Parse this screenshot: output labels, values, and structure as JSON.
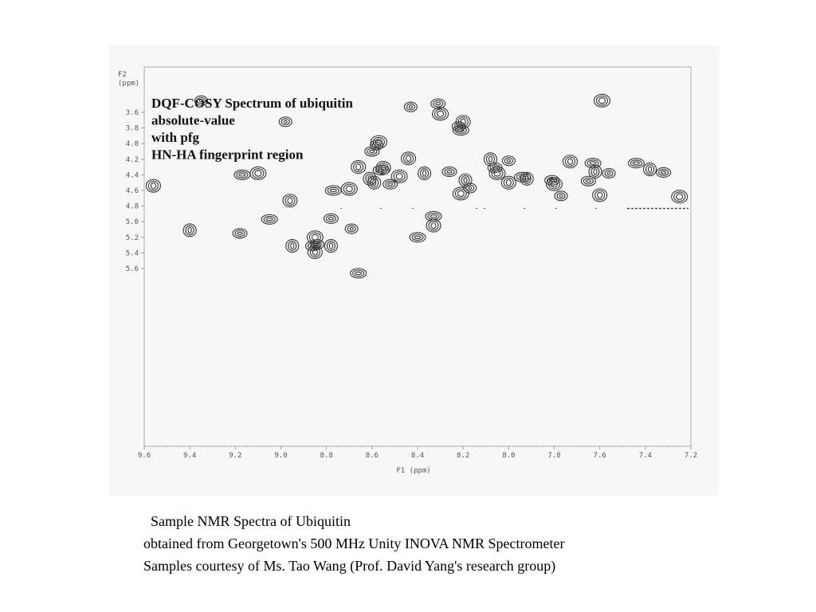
{
  "caption": {
    "line1": "Sample NMR Spectra of Ubiquitin",
    "line2": "obtained from Georgetown's 500 MHz Unity INOVA NMR Spectrometer",
    "line3": "Samples courtesy of Ms. Tao Wang (Prof. David Yang's research group)"
  },
  "colors": {
    "background": "#ffffff",
    "figure_background": "#f7f7f7",
    "contour": "#333333"
  },
  "chart_data": {
    "type": "scatter",
    "title_lines": [
      "DQF-COSY Spectrum of ubiquitin",
      "absolute-value",
      "with pfg",
      "HN-HA fingerprint region"
    ],
    "xlabel": "F1 (ppm)",
    "ylabel": "F2 (ppm)",
    "xlim": [
      9.6,
      7.2
    ],
    "ylim": [
      5.7,
      3.4
    ],
    "x_ticks": [
      "9.6",
      "9.4",
      "9.2",
      "9.0",
      "8.8",
      "8.6",
      "8.4",
      "8.2",
      "8.0",
      "7.8",
      "7.6",
      "7.4",
      "7.2"
    ],
    "y_ticks": [
      "3.6",
      "3.8",
      "4.0",
      "4.2",
      "4.4",
      "4.6",
      "4.8",
      "5.0",
      "5.2",
      "5.4",
      "5.6"
    ],
    "grid": false,
    "points": [
      {
        "x": 9.35,
        "y": 3.45
      },
      {
        "x": 9.56,
        "y": 4.54
      },
      {
        "x": 9.17,
        "y": 4.4
      },
      {
        "x": 9.4,
        "y": 5.11
      },
      {
        "x": 9.18,
        "y": 5.15
      },
      {
        "x": 9.1,
        "y": 4.38
      },
      {
        "x": 8.98,
        "y": 3.72
      },
      {
        "x": 8.96,
        "y": 4.73
      },
      {
        "x": 9.05,
        "y": 4.97
      },
      {
        "x": 8.95,
        "y": 5.31
      },
      {
        "x": 8.86,
        "y": 5.31
      },
      {
        "x": 8.85,
        "y": 5.2
      },
      {
        "x": 8.84,
        "y": 5.29
      },
      {
        "x": 8.85,
        "y": 5.39
      },
      {
        "x": 8.77,
        "y": 4.6
      },
      {
        "x": 8.78,
        "y": 5.31
      },
      {
        "x": 8.78,
        "y": 4.96
      },
      {
        "x": 8.7,
        "y": 4.58
      },
      {
        "x": 8.69,
        "y": 5.09
      },
      {
        "x": 8.66,
        "y": 4.3
      },
      {
        "x": 8.66,
        "y": 5.66
      },
      {
        "x": 8.61,
        "y": 4.45
      },
      {
        "x": 8.6,
        "y": 4.1
      },
      {
        "x": 8.57,
        "y": 3.98
      },
      {
        "x": 8.58,
        "y": 4.02
      },
      {
        "x": 8.55,
        "y": 4.31
      },
      {
        "x": 8.56,
        "y": 4.34
      },
      {
        "x": 8.59,
        "y": 4.5
      },
      {
        "x": 8.52,
        "y": 4.52
      },
      {
        "x": 8.48,
        "y": 4.42
      },
      {
        "x": 8.43,
        "y": 3.53
      },
      {
        "x": 8.44,
        "y": 4.19
      },
      {
        "x": 8.4,
        "y": 5.2
      },
      {
        "x": 8.37,
        "y": 4.38
      },
      {
        "x": 8.31,
        "y": 3.49
      },
      {
        "x": 8.3,
        "y": 3.62
      },
      {
        "x": 8.22,
        "y": 3.78
      },
      {
        "x": 8.2,
        "y": 3.72
      },
      {
        "x": 8.21,
        "y": 3.83
      },
      {
        "x": 8.19,
        "y": 4.47
      },
      {
        "x": 8.26,
        "y": 4.36
      },
      {
        "x": 8.21,
        "y": 4.64
      },
      {
        "x": 8.17,
        "y": 4.57
      },
      {
        "x": 8.33,
        "y": 5.05
      },
      {
        "x": 8.33,
        "y": 4.93
      },
      {
        "x": 8.08,
        "y": 4.2
      },
      {
        "x": 8.06,
        "y": 4.31
      },
      {
        "x": 8.05,
        "y": 4.38
      },
      {
        "x": 8.0,
        "y": 4.22
      },
      {
        "x": 8.0,
        "y": 4.5
      },
      {
        "x": 7.94,
        "y": 4.43
      },
      {
        "x": 7.92,
        "y": 4.45
      },
      {
        "x": 7.81,
        "y": 4.47
      },
      {
        "x": 7.8,
        "y": 4.52
      },
      {
        "x": 7.77,
        "y": 4.67
      },
      {
        "x": 7.73,
        "y": 4.23
      },
      {
        "x": 7.63,
        "y": 4.25
      },
      {
        "x": 7.62,
        "y": 4.36
      },
      {
        "x": 7.65,
        "y": 4.48
      },
      {
        "x": 7.59,
        "y": 3.45
      },
      {
        "x": 7.56,
        "y": 4.38
      },
      {
        "x": 7.6,
        "y": 4.66
      },
      {
        "x": 7.44,
        "y": 4.25
      },
      {
        "x": 7.38,
        "y": 4.33
      },
      {
        "x": 7.32,
        "y": 4.37
      },
      {
        "x": 7.25,
        "y": 4.68
      }
    ]
  }
}
